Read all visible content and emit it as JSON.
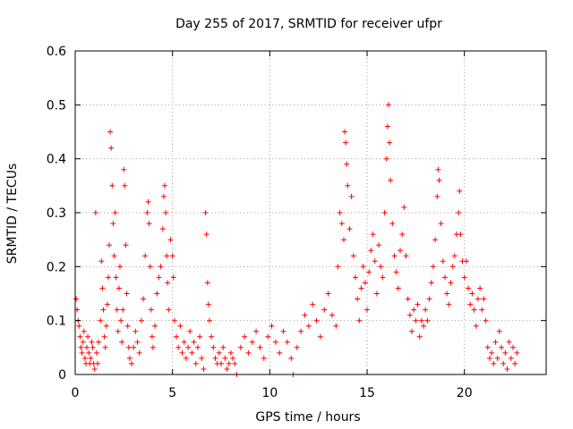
{
  "chart_data": {
    "type": "scatter",
    "title": "Day 255 of 2017, SRMTID for receiver ufpr",
    "xlabel": "GPS time / hours",
    "ylabel": "SRMTID / TECUs",
    "xlim": [
      0,
      24.2
    ],
    "ylim": [
      0,
      0.6
    ],
    "xticks": [
      0,
      5,
      10,
      15,
      20
    ],
    "xtick_labels": [
      "0",
      "5",
      "10",
      "15",
      "20"
    ],
    "yticks": [
      0,
      0.1,
      0.2,
      0.3,
      0.4,
      0.5,
      0.6
    ],
    "ytick_labels": [
      "0",
      "0.1",
      "0.2",
      "0.3",
      "0.4",
      "0.5",
      "0.6"
    ],
    "grid": true,
    "marker": "plus",
    "marker_color": "#ff0000",
    "series": [
      {
        "name": "SRMTID",
        "points": [
          [
            0.05,
            0.14
          ],
          [
            0.1,
            0.12
          ],
          [
            0.15,
            0.1
          ],
          [
            0.2,
            0.09
          ],
          [
            0.25,
            0.07
          ],
          [
            0.3,
            0.05
          ],
          [
            0.35,
            0.04
          ],
          [
            0.4,
            0.06
          ],
          [
            0.45,
            0.08
          ],
          [
            0.5,
            0.03
          ],
          [
            0.55,
            0.02
          ],
          [
            0.6,
            0.05
          ],
          [
            0.65,
            0.07
          ],
          [
            0.7,
            0.04
          ],
          [
            0.75,
            0.02
          ],
          [
            0.8,
            0.03
          ],
          [
            0.85,
            0.06
          ],
          [
            0.9,
            0.05
          ],
          [
            0.95,
            0.02
          ],
          [
            1.0,
            0.01
          ],
          [
            1.05,
            0.3
          ],
          [
            1.1,
            0.04
          ],
          [
            1.15,
            0.02
          ],
          [
            1.2,
            0.06
          ],
          [
            1.3,
            0.1
          ],
          [
            1.35,
            0.21
          ],
          [
            1.4,
            0.16
          ],
          [
            1.45,
            0.12
          ],
          [
            1.5,
            0.07
          ],
          [
            1.55,
            0.05
          ],
          [
            1.6,
            0.09
          ],
          [
            1.65,
            0.13
          ],
          [
            1.7,
            0.18
          ],
          [
            1.75,
            0.24
          ],
          [
            1.8,
            0.45
          ],
          [
            1.85,
            0.42
          ],
          [
            1.9,
            0.35
          ],
          [
            1.95,
            0.28
          ],
          [
            2.0,
            0.22
          ],
          [
            2.05,
            0.3
          ],
          [
            2.1,
            0.18
          ],
          [
            2.15,
            0.12
          ],
          [
            2.2,
            0.08
          ],
          [
            2.25,
            0.16
          ],
          [
            2.3,
            0.2
          ],
          [
            2.35,
            0.1
          ],
          [
            2.4,
            0.06
          ],
          [
            2.45,
            0.12
          ],
          [
            2.5,
            0.38
          ],
          [
            2.55,
            0.35
          ],
          [
            2.6,
            0.24
          ],
          [
            2.65,
            0.15
          ],
          [
            2.7,
            0.09
          ],
          [
            2.75,
            0.05
          ],
          [
            2.8,
            0.03
          ],
          [
            2.9,
            0.02
          ],
          [
            3.0,
            0.05
          ],
          [
            3.1,
            0.08
          ],
          [
            3.2,
            0.06
          ],
          [
            3.3,
            0.04
          ],
          [
            3.4,
            0.1
          ],
          [
            3.5,
            0.14
          ],
          [
            3.6,
            0.22
          ],
          [
            3.7,
            0.3
          ],
          [
            3.75,
            0.32
          ],
          [
            3.8,
            0.28
          ],
          [
            3.85,
            0.2
          ],
          [
            3.9,
            0.12
          ],
          [
            3.95,
            0.07
          ],
          [
            4.0,
            0.05
          ],
          [
            4.1,
            0.09
          ],
          [
            4.2,
            0.15
          ],
          [
            4.3,
            0.18
          ],
          [
            4.4,
            0.2
          ],
          [
            4.5,
            0.27
          ],
          [
            4.55,
            0.33
          ],
          [
            4.6,
            0.35
          ],
          [
            4.65,
            0.3
          ],
          [
            4.7,
            0.22
          ],
          [
            4.75,
            0.17
          ],
          [
            4.8,
            0.12
          ],
          [
            4.9,
            0.25
          ],
          [
            5.0,
            0.22
          ],
          [
            5.05,
            0.18
          ],
          [
            5.1,
            0.1
          ],
          [
            5.2,
            0.07
          ],
          [
            5.3,
            0.05
          ],
          [
            5.4,
            0.09
          ],
          [
            5.5,
            0.04
          ],
          [
            5.6,
            0.06
          ],
          [
            5.7,
            0.03
          ],
          [
            5.8,
            0.05
          ],
          [
            5.9,
            0.08
          ],
          [
            6.0,
            0.04
          ],
          [
            6.1,
            0.06
          ],
          [
            6.2,
            0.02
          ],
          [
            6.3,
            0.05
          ],
          [
            6.4,
            0.07
          ],
          [
            6.5,
            0.03
          ],
          [
            6.6,
            0.01
          ],
          [
            6.7,
            0.3
          ],
          [
            6.75,
            0.26
          ],
          [
            6.8,
            0.17
          ],
          [
            6.85,
            0.13
          ],
          [
            6.9,
            0.1
          ],
          [
            7.0,
            0.07
          ],
          [
            7.1,
            0.05
          ],
          [
            7.2,
            0.03
          ],
          [
            7.3,
            0.02
          ],
          [
            7.4,
            0.04
          ],
          [
            7.5,
            0.02
          ],
          [
            7.6,
            0.05
          ],
          [
            7.7,
            0.03
          ],
          [
            7.8,
            0.01
          ],
          [
            7.9,
            0.02
          ],
          [
            8.0,
            0.04
          ],
          [
            8.1,
            0.03
          ],
          [
            8.2,
            0.02
          ],
          [
            8.3,
            0.0
          ],
          [
            8.5,
            0.05
          ],
          [
            8.7,
            0.07
          ],
          [
            8.9,
            0.04
          ],
          [
            9.1,
            0.06
          ],
          [
            9.3,
            0.08
          ],
          [
            9.5,
            0.05
          ],
          [
            9.7,
            0.03
          ],
          [
            9.9,
            0.07
          ],
          [
            10.1,
            0.09
          ],
          [
            10.3,
            0.06
          ],
          [
            10.5,
            0.04
          ],
          [
            10.7,
            0.08
          ],
          [
            10.9,
            0.06
          ],
          [
            11.1,
            0.03
          ],
          [
            11.2,
            0.0
          ],
          [
            11.4,
            0.05
          ],
          [
            11.6,
            0.08
          ],
          [
            11.8,
            0.11
          ],
          [
            12.0,
            0.09
          ],
          [
            12.2,
            0.13
          ],
          [
            12.4,
            0.1
          ],
          [
            12.6,
            0.07
          ],
          [
            12.8,
            0.12
          ],
          [
            13.0,
            0.15
          ],
          [
            13.2,
            0.11
          ],
          [
            13.4,
            0.09
          ],
          [
            13.5,
            0.2
          ],
          [
            13.6,
            0.3
          ],
          [
            13.7,
            0.28
          ],
          [
            13.8,
            0.25
          ],
          [
            13.85,
            0.45
          ],
          [
            13.9,
            0.43
          ],
          [
            13.95,
            0.39
          ],
          [
            14.0,
            0.35
          ],
          [
            14.1,
            0.27
          ],
          [
            14.2,
            0.33
          ],
          [
            14.3,
            0.22
          ],
          [
            14.4,
            0.18
          ],
          [
            14.5,
            0.14
          ],
          [
            14.6,
            0.1
          ],
          [
            14.7,
            0.16
          ],
          [
            14.8,
            0.2
          ],
          [
            14.9,
            0.17
          ],
          [
            15.0,
            0.12
          ],
          [
            15.1,
            0.19
          ],
          [
            15.2,
            0.23
          ],
          [
            15.3,
            0.26
          ],
          [
            15.4,
            0.21
          ],
          [
            15.5,
            0.15
          ],
          [
            15.6,
            0.24
          ],
          [
            15.7,
            0.2
          ],
          [
            15.8,
            0.18
          ],
          [
            15.9,
            0.3
          ],
          [
            16.0,
            0.4
          ],
          [
            16.05,
            0.46
          ],
          [
            16.1,
            0.5
          ],
          [
            16.15,
            0.43
          ],
          [
            16.2,
            0.36
          ],
          [
            16.3,
            0.28
          ],
          [
            16.4,
            0.22
          ],
          [
            16.5,
            0.19
          ],
          [
            16.6,
            0.16
          ],
          [
            16.7,
            0.23
          ],
          [
            16.8,
            0.26
          ],
          [
            16.9,
            0.31
          ],
          [
            17.0,
            0.22
          ],
          [
            17.1,
            0.14
          ],
          [
            17.2,
            0.11
          ],
          [
            17.3,
            0.08
          ],
          [
            17.4,
            0.12
          ],
          [
            17.5,
            0.1
          ],
          [
            17.6,
            0.13
          ],
          [
            17.7,
            0.07
          ],
          [
            17.8,
            0.1
          ],
          [
            17.9,
            0.09
          ],
          [
            18.0,
            0.12
          ],
          [
            18.1,
            0.1
          ],
          [
            18.2,
            0.14
          ],
          [
            18.3,
            0.17
          ],
          [
            18.4,
            0.2
          ],
          [
            18.5,
            0.25
          ],
          [
            18.6,
            0.33
          ],
          [
            18.65,
            0.38
          ],
          [
            18.7,
            0.36
          ],
          [
            18.8,
            0.28
          ],
          [
            18.9,
            0.21
          ],
          [
            19.0,
            0.18
          ],
          [
            19.1,
            0.15
          ],
          [
            19.2,
            0.13
          ],
          [
            19.3,
            0.17
          ],
          [
            19.4,
            0.2
          ],
          [
            19.5,
            0.22
          ],
          [
            19.6,
            0.26
          ],
          [
            19.7,
            0.3
          ],
          [
            19.75,
            0.34
          ],
          [
            19.8,
            0.26
          ],
          [
            19.9,
            0.21
          ],
          [
            20.0,
            0.18
          ],
          [
            20.1,
            0.21
          ],
          [
            20.2,
            0.16
          ],
          [
            20.3,
            0.13
          ],
          [
            20.4,
            0.15
          ],
          [
            20.5,
            0.12
          ],
          [
            20.6,
            0.09
          ],
          [
            20.7,
            0.14
          ],
          [
            20.8,
            0.16
          ],
          [
            20.9,
            0.12
          ],
          [
            21.0,
            0.14
          ],
          [
            21.1,
            0.1
          ],
          [
            21.2,
            0.05
          ],
          [
            21.3,
            0.03
          ],
          [
            21.4,
            0.04
          ],
          [
            21.5,
            0.02
          ],
          [
            21.6,
            0.06
          ],
          [
            21.7,
            0.03
          ],
          [
            21.8,
            0.08
          ],
          [
            21.9,
            0.05
          ],
          [
            22.0,
            0.02
          ],
          [
            22.1,
            0.04
          ],
          [
            22.2,
            0.01
          ],
          [
            22.3,
            0.06
          ],
          [
            22.4,
            0.03
          ],
          [
            22.5,
            0.05
          ],
          [
            22.6,
            0.02
          ],
          [
            22.7,
            0.04
          ]
        ]
      }
    ]
  }
}
